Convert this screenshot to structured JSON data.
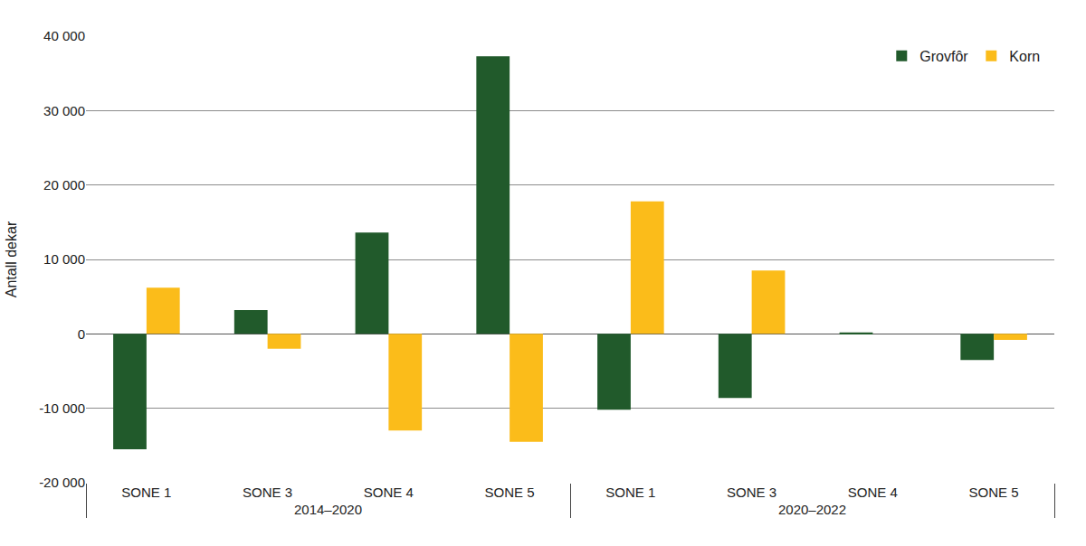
{
  "chart_data": {
    "type": "bar",
    "y_label": "Antall dekar",
    "categories": [
      {
        "group": "2014–2020",
        "label": "SONE 1"
      },
      {
        "group": "2014–2020",
        "label": "SONE 3"
      },
      {
        "group": "2014–2020",
        "label": "SONE 4"
      },
      {
        "group": "2014–2020",
        "label": "SONE 5"
      },
      {
        "group": "2020–2022",
        "label": "SONE 1"
      },
      {
        "group": "2020–2022",
        "label": "SONE 3"
      },
      {
        "group": "2020–2022",
        "label": "SONE 4"
      },
      {
        "group": "2020–2022",
        "label": "SONE 5"
      }
    ],
    "series": [
      {
        "name": "Grovfôr",
        "color": "#215a2b",
        "values": [
          -15500,
          3200,
          13600,
          37300,
          -10200,
          -8600,
          200,
          -3500
        ]
      },
      {
        "name": "Korn",
        "color": "#fbbc1a",
        "values": [
          6200,
          -2000,
          -13000,
          -14500,
          17800,
          8500,
          0,
          -800
        ]
      }
    ],
    "ylim": [
      -20000,
      40000
    ],
    "yticks": [
      {
        "value": -20000,
        "label": "-20 000"
      },
      {
        "value": -10000,
        "label": "-10 000"
      },
      0,
      {
        "value": 10000,
        "label": "10 000"
      },
      {
        "value": 20000,
        "label": "20 000"
      },
      {
        "value": 30000,
        "label": "30 000"
      },
      {
        "value": 40000,
        "label": "40 000"
      }
    ],
    "grid": true,
    "legend": "top right"
  }
}
